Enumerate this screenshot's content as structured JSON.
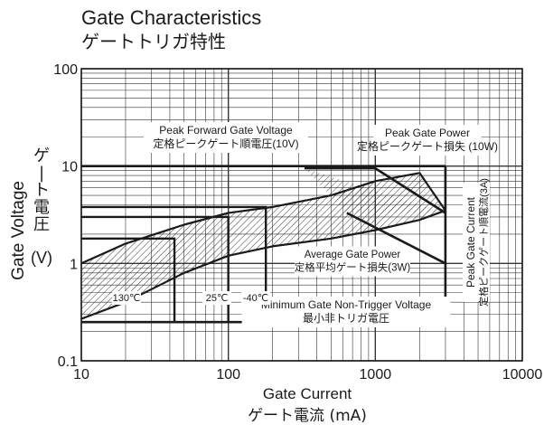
{
  "chart_data": {
    "type": "line",
    "title": "Gate Characteristics",
    "subtitle": "ゲートトリガ特性",
    "xlabel": "Gate Current",
    "xlabel_jp": "ゲート電流 (mA)",
    "ylabel": "Gate Voltage",
    "ylabel_jp": "ゲート電圧",
    "ylabel_unit": "(V)",
    "x_scale": "log",
    "y_scale": "log",
    "xlim": [
      10,
      10000
    ],
    "ylim": [
      0.1,
      100
    ],
    "x_ticks": [
      "10",
      "100",
      "1000",
      "10000"
    ],
    "y_ticks": [
      "0.1",
      "1",
      "10",
      "100"
    ],
    "grid": true,
    "series": [
      {
        "name": "Peak Forward Gate Voltage",
        "x": [
          10,
          3000
        ],
        "y": [
          10,
          10
        ]
      },
      {
        "name": "Peak Gate Power",
        "x": [
          330,
          1000,
          3000
        ],
        "y": [
          9.5,
          9.5,
          3.3
        ]
      },
      {
        "name": "Average Gate Power",
        "x": [
          640,
          3000
        ],
        "y": [
          3.3,
          1.0
        ]
      },
      {
        "name": "Peak Gate Current",
        "x": [
          3000,
          3000
        ],
        "y": [
          0.25,
          10
        ]
      },
      {
        "name": "Minimum Gate Non-Trigger Voltage",
        "x": [
          10,
          3000
        ],
        "y": [
          0.25,
          0.25
        ]
      },
      {
        "name": "Gate characteristic upper",
        "x": [
          10,
          20,
          50,
          100,
          200,
          500,
          1000,
          2000,
          3000
        ],
        "y": [
          1.0,
          1.6,
          2.5,
          3.3,
          3.8,
          5.0,
          7.0,
          8.5,
          3.5
        ]
      },
      {
        "name": "Gate characteristic lower",
        "x": [
          10,
          20,
          50,
          100,
          200,
          500,
          1000,
          2000,
          3000
        ],
        "y": [
          0.27,
          0.4,
          0.8,
          1.2,
          1.5,
          1.8,
          2.2,
          2.8,
          3.5
        ]
      }
    ],
    "trigger_regions": [
      {
        "label": "130℃",
        "x_max": 43,
        "y_max": 1.8
      },
      {
        "label": "25℃",
        "x_max": 100,
        "y_max": 3.0
      },
      {
        "label": "-40℃",
        "x_max": 180,
        "y_max": 3.8
      }
    ],
    "annotations": [
      {
        "text": "Peak Forward Gate Voltage",
        "text_jp": "定格ピークゲート順電圧(10V)"
      },
      {
        "text": "Peak Gate Power",
        "text_jp": "定格ピークゲート損失 (10W)"
      },
      {
        "text": "Average Gate Power",
        "text_jp": "定格平均ゲート損失(3W)"
      },
      {
        "text": "Peak Gate Current",
        "text_jp": "定格ピークゲート順電流(3A)"
      },
      {
        "text": "Minimum Gate Non-Trigger Voltage",
        "text_jp": "最小非トリガ電圧"
      }
    ]
  }
}
